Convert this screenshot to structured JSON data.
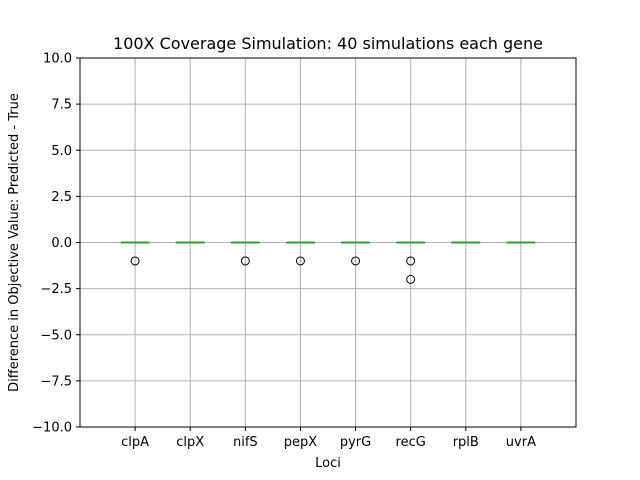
{
  "chart_data": {
    "type": "box",
    "title": "100X Coverage Simulation: 40 simulations each gene",
    "xlabel": "Loci",
    "ylabel": "Difference in Objective Value: Predicted - True",
    "ylim": [
      -10,
      10
    ],
    "yticks": [
      -10,
      -7.5,
      -5,
      -2.5,
      0,
      2.5,
      5,
      7.5,
      10
    ],
    "ytick_labels": [
      "−10.0",
      "−7.5",
      "−5.0",
      "−2.5",
      "0.0",
      "2.5",
      "5.0",
      "7.5",
      "10.0"
    ],
    "grid": true,
    "colors": {
      "box": "#1f77b4",
      "median": "#2ca02c",
      "whisker": "#000000",
      "flier": "#000000"
    },
    "categories": [
      "clpA",
      "clpX",
      "nifS",
      "pepX",
      "pyrG",
      "recG",
      "rplB",
      "uvrA"
    ],
    "boxes": [
      {
        "name": "clpA",
        "q1": 0,
        "median": 0,
        "q3": 0,
        "whislo": 0,
        "whishi": 0,
        "fliers": [
          -1
        ]
      },
      {
        "name": "clpX",
        "q1": 0,
        "median": 0,
        "q3": 0,
        "whislo": 0,
        "whishi": 0,
        "fliers": []
      },
      {
        "name": "nifS",
        "q1": 0,
        "median": 0,
        "q3": 0,
        "whislo": 0,
        "whishi": 0,
        "fliers": [
          -1
        ]
      },
      {
        "name": "pepX",
        "q1": 0,
        "median": 0,
        "q3": 0,
        "whislo": 0,
        "whishi": 0,
        "fliers": [
          -1
        ]
      },
      {
        "name": "pyrG",
        "q1": 0,
        "median": 0,
        "q3": 0,
        "whislo": 0,
        "whishi": 0,
        "fliers": [
          -1
        ]
      },
      {
        "name": "recG",
        "q1": 0,
        "median": 0,
        "q3": 0,
        "whislo": 0,
        "whishi": 0,
        "fliers": [
          -1,
          -2
        ]
      },
      {
        "name": "rplB",
        "q1": 0,
        "median": 0,
        "q3": 0,
        "whislo": 0,
        "whishi": 0,
        "fliers": []
      },
      {
        "name": "uvrA",
        "q1": 0,
        "median": 0,
        "q3": 0,
        "whislo": 0,
        "whishi": 0,
        "fliers": []
      }
    ]
  }
}
